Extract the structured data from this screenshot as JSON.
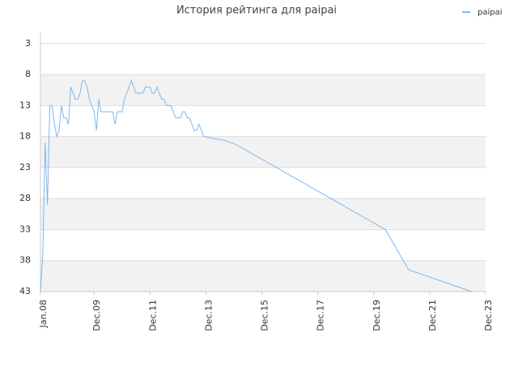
{
  "chart_data": {
    "type": "line",
    "title": "История рейтинга для paipai",
    "ylim": [
      43,
      1.2
    ],
    "yticks": [
      3,
      8,
      13,
      18,
      23,
      28,
      33,
      38,
      43
    ],
    "xlim": [
      "2008-01",
      "2023-12"
    ],
    "xticks": [
      {
        "value": "2008-01",
        "label": "Jan.08"
      },
      {
        "value": "2009-12",
        "label": "Dec.09"
      },
      {
        "value": "2011-12",
        "label": "Dec.11"
      },
      {
        "value": "2013-12",
        "label": "Dec.13"
      },
      {
        "value": "2015-12",
        "label": "Dec.15"
      },
      {
        "value": "2017-12",
        "label": "Dec.17"
      },
      {
        "value": "2019-12",
        "label": "Dec.19"
      },
      {
        "value": "2021-12",
        "label": "Dec.21"
      },
      {
        "value": "2023-12",
        "label": "Dec.23"
      }
    ],
    "grid": true,
    "legend": "top-right",
    "series": [
      {
        "name": "paipai",
        "color": "#7db8ee",
        "x": [
          "2008-01",
          "2008-02",
          "2008-03",
          "2008-04",
          "2008-05",
          "2008-06",
          "2008-07",
          "2008-08",
          "2008-09",
          "2008-10",
          "2008-11",
          "2008-12",
          "2009-01",
          "2009-02",
          "2009-03",
          "2009-04",
          "2009-05",
          "2009-06",
          "2009-07",
          "2009-08",
          "2009-09",
          "2009-10",
          "2009-11",
          "2009-12",
          "2010-01",
          "2010-02",
          "2010-03",
          "2010-04",
          "2010-05",
          "2010-06",
          "2010-07",
          "2010-08",
          "2010-09",
          "2010-10",
          "2010-11",
          "2010-12",
          "2011-01",
          "2011-02",
          "2011-03",
          "2011-04",
          "2011-05",
          "2011-06",
          "2011-07",
          "2011-08",
          "2011-09",
          "2011-10",
          "2011-11",
          "2011-12",
          "2012-01",
          "2012-02",
          "2012-03",
          "2012-04",
          "2012-05",
          "2012-06",
          "2012-07",
          "2012-08",
          "2012-09",
          "2012-10",
          "2012-11",
          "2012-12",
          "2013-01",
          "2013-02",
          "2013-03",
          "2013-04",
          "2013-05",
          "2013-06",
          "2013-07",
          "2013-08",
          "2013-09",
          "2013-10",
          "2013-11",
          "2014-03",
          "2014-08",
          "2015-01",
          "2020-05",
          "2021-03",
          "2023-06"
        ],
        "values": [
          43,
          37,
          19,
          29,
          13,
          13,
          16,
          18,
          17,
          13,
          15,
          15,
          16,
          10,
          11,
          12,
          12,
          11,
          9,
          9,
          10,
          12,
          13,
          14,
          17,
          12,
          14,
          14,
          14,
          14,
          14,
          14,
          16,
          14,
          14,
          14,
          12,
          11,
          10,
          9,
          10,
          11,
          11,
          11,
          11,
          10,
          10,
          10,
          11,
          11,
          10,
          11,
          12,
          12,
          13,
          13,
          13,
          14,
          15,
          15,
          15,
          14,
          14,
          15,
          15,
          16,
          17,
          17,
          16,
          17,
          18,
          18.3,
          18.6,
          19.3,
          33,
          39.5,
          43
        ]
      }
    ]
  }
}
